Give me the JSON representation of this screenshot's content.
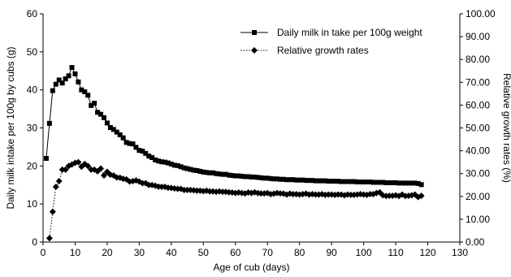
{
  "chart_data": {
    "type": "line",
    "title": "",
    "xlabel": "Age of cub (days)",
    "ylabel_left": "Daily milk intake per 100g by cubs (g)",
    "ylabel_right": "Relative growth rates (%)",
    "xlim": [
      0,
      130
    ],
    "ylim_left": [
      0,
      60
    ],
    "ylim_right": [
      0,
      100
    ],
    "x_ticks": [
      "0",
      "10",
      "20",
      "30",
      "40",
      "50",
      "60",
      "70",
      "80",
      "90",
      "100",
      "110",
      "120",
      "130"
    ],
    "y_left_ticks": [
      "0",
      "10",
      "20",
      "30",
      "40",
      "50",
      "60"
    ],
    "y_right_ticks": [
      "0.00",
      "10.00",
      "20.00",
      "30.00",
      "40.00",
      "50.00",
      "60.00",
      "70.00",
      "80.00",
      "90.00",
      "100.00"
    ],
    "grid": false,
    "legend_position": "top-right",
    "series": [
      {
        "name": "Daily milk in take per 100g weight",
        "axis": "left",
        "marker": "square",
        "line": "solid",
        "color": "#000000",
        "x": [
          1,
          2,
          3,
          4,
          5,
          6,
          7,
          8,
          9,
          10,
          11,
          12,
          13,
          14,
          15,
          16,
          17,
          18,
          19,
          20,
          21,
          22,
          23,
          24,
          25,
          26,
          27,
          28,
          29,
          30,
          31,
          32,
          33,
          34,
          35,
          36,
          37,
          38,
          39,
          40,
          41,
          42,
          43,
          44,
          45,
          46,
          47,
          48,
          49,
          50,
          51,
          52,
          53,
          54,
          55,
          56,
          57,
          58,
          59,
          60,
          61,
          62,
          63,
          64,
          65,
          66,
          67,
          68,
          69,
          70,
          71,
          72,
          73,
          74,
          75,
          76,
          77,
          78,
          79,
          80,
          81,
          82,
          83,
          84,
          85,
          86,
          87,
          88,
          89,
          90,
          91,
          92,
          93,
          94,
          95,
          96,
          97,
          98,
          99,
          100,
          101,
          102,
          103,
          104,
          105,
          106,
          107,
          108,
          109,
          110,
          111,
          112,
          113,
          114,
          115,
          116,
          117,
          118
        ],
        "values": [
          22.0,
          31.2,
          39.8,
          41.5,
          42.6,
          41.8,
          42.9,
          43.7,
          45.9,
          44.2,
          42.1,
          40.0,
          39.5,
          38.6,
          35.9,
          36.5,
          34.1,
          33.6,
          32.7,
          31.3,
          30.1,
          29.6,
          28.9,
          28.2,
          27.4,
          26.2,
          25.9,
          25.8,
          24.9,
          24.1,
          23.9,
          23.3,
          22.6,
          22.2,
          21.6,
          21.3,
          21.1,
          21.0,
          20.8,
          20.5,
          20.2,
          20.1,
          19.8,
          19.5,
          19.3,
          19.1,
          18.9,
          18.8,
          18.6,
          18.4,
          18.3,
          18.2,
          18.2,
          18.0,
          17.9,
          17.8,
          17.8,
          17.6,
          17.5,
          17.4,
          17.4,
          17.3,
          17.2,
          17.2,
          17.1,
          17.1,
          17.0,
          16.9,
          16.8,
          16.8,
          16.7,
          16.6,
          16.6,
          16.5,
          16.5,
          16.4,
          16.4,
          16.4,
          16.3,
          16.3,
          16.3,
          16.2,
          16.2,
          16.2,
          16.1,
          16.1,
          16.1,
          16.1,
          16.0,
          16.0,
          16.0,
          16.0,
          15.9,
          15.9,
          15.9,
          15.9,
          15.9,
          15.8,
          15.8,
          15.8,
          15.8,
          15.8,
          15.7,
          15.7,
          15.7,
          15.7,
          15.6,
          15.6,
          15.6,
          15.6,
          15.5,
          15.5,
          15.5,
          15.5,
          15.5,
          15.5,
          15.4,
          15.1
        ]
      },
      {
        "name": "Relative growth rates",
        "axis": "right",
        "marker": "diamond",
        "line": "dotted",
        "color": "#000000",
        "x": [
          2,
          3,
          4,
          5,
          6,
          7,
          8,
          9,
          10,
          11,
          12,
          13,
          14,
          15,
          16,
          17,
          18,
          19,
          20,
          21,
          22,
          23,
          24,
          25,
          26,
          27,
          28,
          29,
          30,
          31,
          32,
          33,
          34,
          35,
          36,
          37,
          38,
          39,
          40,
          41,
          42,
          43,
          44,
          45,
          46,
          47,
          48,
          49,
          50,
          51,
          52,
          53,
          54,
          55,
          56,
          57,
          58,
          59,
          60,
          61,
          62,
          63,
          64,
          65,
          66,
          67,
          68,
          69,
          70,
          71,
          72,
          73,
          74,
          75,
          76,
          77,
          78,
          79,
          80,
          81,
          82,
          83,
          84,
          85,
          86,
          87,
          88,
          89,
          90,
          91,
          92,
          93,
          94,
          95,
          96,
          97,
          98,
          99,
          100,
          101,
          102,
          103,
          104,
          105,
          106,
          107,
          108,
          109,
          110,
          111,
          112,
          113,
          114,
          115,
          116,
          117,
          118
        ],
        "values": [
          1.7,
          13.3,
          24.2,
          26.7,
          31.7,
          31.7,
          33.3,
          34.0,
          34.7,
          35.0,
          33.0,
          34.2,
          33.3,
          31.7,
          31.7,
          31.0,
          32.2,
          29.2,
          30.8,
          29.5,
          29.2,
          28.3,
          28.2,
          27.7,
          27.5,
          26.5,
          26.7,
          27.0,
          26.5,
          25.8,
          25.8,
          25.0,
          25.0,
          24.7,
          24.3,
          24.2,
          24.2,
          23.8,
          23.7,
          23.5,
          23.3,
          23.3,
          22.8,
          22.8,
          22.8,
          22.7,
          22.5,
          22.5,
          22.3,
          22.5,
          22.2,
          22.2,
          22.0,
          22.2,
          22.0,
          22.0,
          21.8,
          21.7,
          21.5,
          21.7,
          21.5,
          21.3,
          21.7,
          21.5,
          21.8,
          21.5,
          21.3,
          21.3,
          21.5,
          21.0,
          21.2,
          21.5,
          21.3,
          21.2,
          20.8,
          21.2,
          21.0,
          21.0,
          20.8,
          21.0,
          21.2,
          20.8,
          21.0,
          20.8,
          20.8,
          21.0,
          20.7,
          20.8,
          20.8,
          20.7,
          20.8,
          20.8,
          20.5,
          20.8,
          20.7,
          20.7,
          20.8,
          21.0,
          20.8,
          20.7,
          21.0,
          21.0,
          21.5,
          21.8,
          20.5,
          20.2,
          20.3,
          20.3,
          20.5,
          20.2,
          20.8,
          20.2,
          20.3,
          20.5,
          20.8,
          19.7,
          20.3
        ]
      }
    ]
  }
}
